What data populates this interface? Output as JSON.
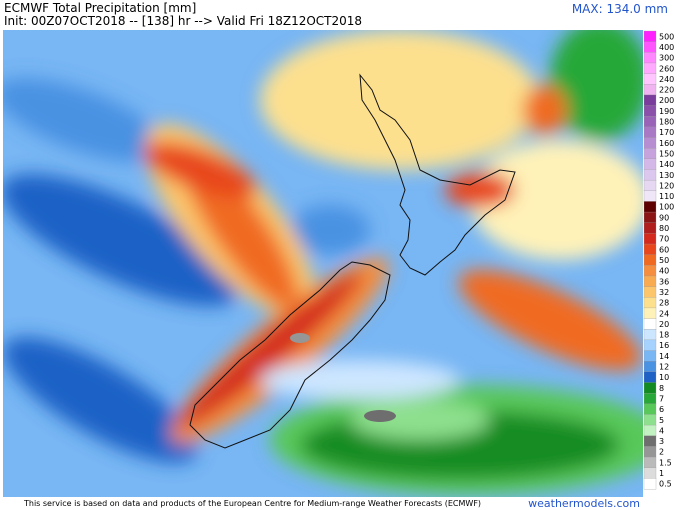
{
  "header": {
    "title": "ECMWF Total Precipitation [mm]",
    "subtitle": "Init: 00Z07OCT2018 -- [138] hr --> Valid Fri 18Z12OCT2018",
    "max_label": "MAX: 134.0 mm"
  },
  "colorbar": {
    "levels": [
      {
        "label": 500,
        "color": "#ff22ff"
      },
      {
        "label": 400,
        "color": "#ff55ff"
      },
      {
        "label": 300,
        "color": "#ff88ff"
      },
      {
        "label": 260,
        "color": "#ffaaff"
      },
      {
        "label": 240,
        "color": "#ffc6ff"
      },
      {
        "label": 220,
        "color": "#f0b4f0"
      },
      {
        "label": 200,
        "color": "#7a3d9c"
      },
      {
        "label": 190,
        "color": "#8a50aa"
      },
      {
        "label": 180,
        "color": "#9964b8"
      },
      {
        "label": 170,
        "color": "#a979c5"
      },
      {
        "label": 160,
        "color": "#b88ed2"
      },
      {
        "label": 150,
        "color": "#c6a3dd"
      },
      {
        "label": 140,
        "color": "#d4b8e8"
      },
      {
        "label": 130,
        "color": "#dcc8ee"
      },
      {
        "label": 120,
        "color": "#e6d8f3"
      },
      {
        "label": 110,
        "color": "#efe6f8"
      },
      {
        "label": 100,
        "color": "#5e0000"
      },
      {
        "label": 90,
        "color": "#8b1414"
      },
      {
        "label": 80,
        "color": "#b01e1e"
      },
      {
        "label": 70,
        "color": "#d42a1e"
      },
      {
        "label": 60,
        "color": "#e8461c"
      },
      {
        "label": 50,
        "color": "#f06a22"
      },
      {
        "label": 40,
        "color": "#f58e3e"
      },
      {
        "label": 36,
        "color": "#f9ab52"
      },
      {
        "label": 32,
        "color": "#fcc66c"
      },
      {
        "label": 28,
        "color": "#fde08e"
      },
      {
        "label": 24,
        "color": "#fff2b8"
      },
      {
        "label": 20,
        "color": "#ffffff"
      },
      {
        "label": 18,
        "color": "#cde6ff"
      },
      {
        "label": 16,
        "color": "#a6d2ff"
      },
      {
        "label": 14,
        "color": "#78b6f4"
      },
      {
        "label": 12,
        "color": "#4a92e2"
      },
      {
        "label": 10,
        "color": "#1f62c6"
      },
      {
        "label": 8,
        "color": "#128c22"
      },
      {
        "label": 7,
        "color": "#28a838"
      },
      {
        "label": 6,
        "color": "#58c85a"
      },
      {
        "label": 5,
        "color": "#8ee08e"
      },
      {
        "label": 4,
        "color": "#c2f2c2"
      },
      {
        "label": 3,
        "color": "#6e6e6e"
      },
      {
        "label": 2,
        "color": "#969696"
      },
      {
        "label": 1.5,
        "color": "#bababa"
      },
      {
        "label": 1,
        "color": "#dcdcdc"
      },
      {
        "label": 0.5,
        "color": "#ffffff"
      }
    ]
  },
  "footer": {
    "credit": "This service is based on data and products of the European Centre for Medium-range Weather Forecasts (ECMWF)",
    "site": "weathermodels.com"
  }
}
